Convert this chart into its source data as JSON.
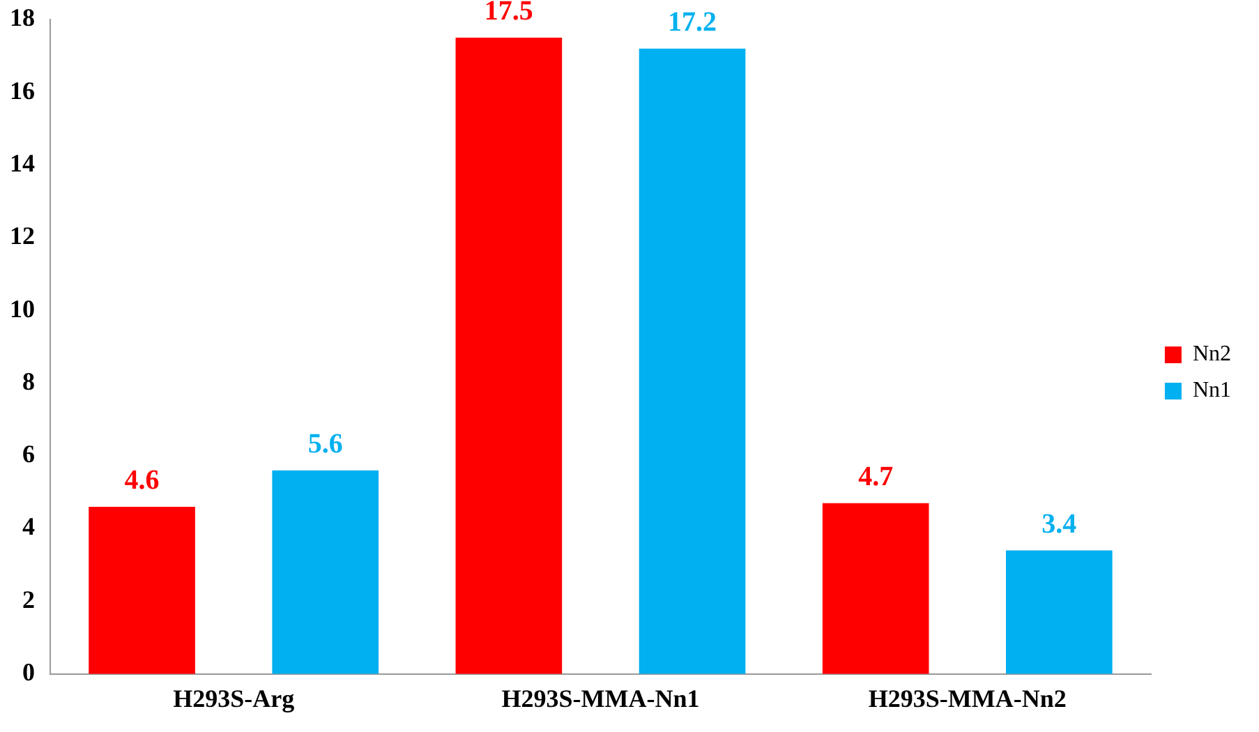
{
  "chart_data": {
    "type": "bar",
    "categories": [
      "H293S-Arg",
      "H293S-MMA-Nn1",
      "H293S-MMA-Nn2"
    ],
    "series": [
      {
        "name": "Nn2",
        "color": "#ff0000",
        "values": [
          4.6,
          17.5,
          4.7
        ]
      },
      {
        "name": "Nn1",
        "color": "#00b0f0",
        "values": [
          5.6,
          17.2,
          3.4
        ]
      }
    ],
    "ylim": [
      0,
      18
    ],
    "yticks": [
      0,
      2,
      4,
      6,
      8,
      10,
      12,
      14,
      16,
      18
    ],
    "grid": false,
    "legend": "right",
    "data_labels": true
  }
}
